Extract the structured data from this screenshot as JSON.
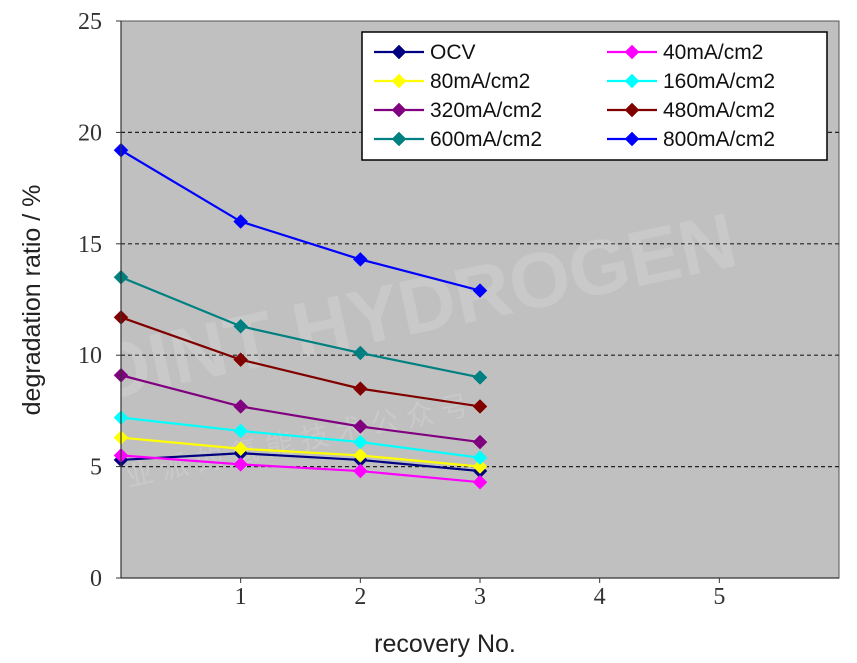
{
  "chart_data": {
    "type": "line",
    "xlabel": "recovery No.",
    "ylabel": "degradation ratio / %",
    "xlim": [
      0,
      6
    ],
    "ylim": [
      0,
      25
    ],
    "xticks": [
      "1",
      "2",
      "3",
      "4",
      "5"
    ],
    "yticks": [
      "0",
      "5",
      "10",
      "15",
      "20",
      "25"
    ],
    "grid": "horizontal dashed",
    "legend_position": "top-right",
    "plot_background": "#c0c0c0",
    "x": [
      0,
      1,
      2,
      3
    ],
    "series": [
      {
        "name": "OCV",
        "color": "#000080",
        "values": [
          5.3,
          5.6,
          5.3,
          4.8
        ]
      },
      {
        "name": "40mA/cm2",
        "color": "#ff00ff",
        "values": [
          5.5,
          5.1,
          4.8,
          4.3
        ]
      },
      {
        "name": "80mA/cm2",
        "color": "#ffff00",
        "values": [
          6.3,
          5.8,
          5.5,
          5.0
        ]
      },
      {
        "name": "160mA/cm2",
        "color": "#00ffff",
        "values": [
          7.2,
          6.6,
          6.1,
          5.4
        ]
      },
      {
        "name": "320mA/cm2",
        "color": "#800080",
        "values": [
          9.1,
          7.7,
          6.8,
          6.1
        ]
      },
      {
        "name": "480mA/cm2",
        "color": "#800000",
        "values": [
          11.7,
          9.8,
          8.5,
          7.7
        ]
      },
      {
        "name": "600mA/cm2",
        "color": "#008080",
        "values": [
          13.5,
          11.3,
          10.1,
          9.0
        ]
      },
      {
        "name": "800mA/cm2",
        "color": "#0000ff",
        "values": [
          19.2,
          16.0,
          14.3,
          12.9
        ]
      }
    ]
  },
  "watermark": {
    "text": "POINT HYDROGEN",
    "subtext": "工 业 派 的 氢 能 技 术 公 众 号"
  }
}
